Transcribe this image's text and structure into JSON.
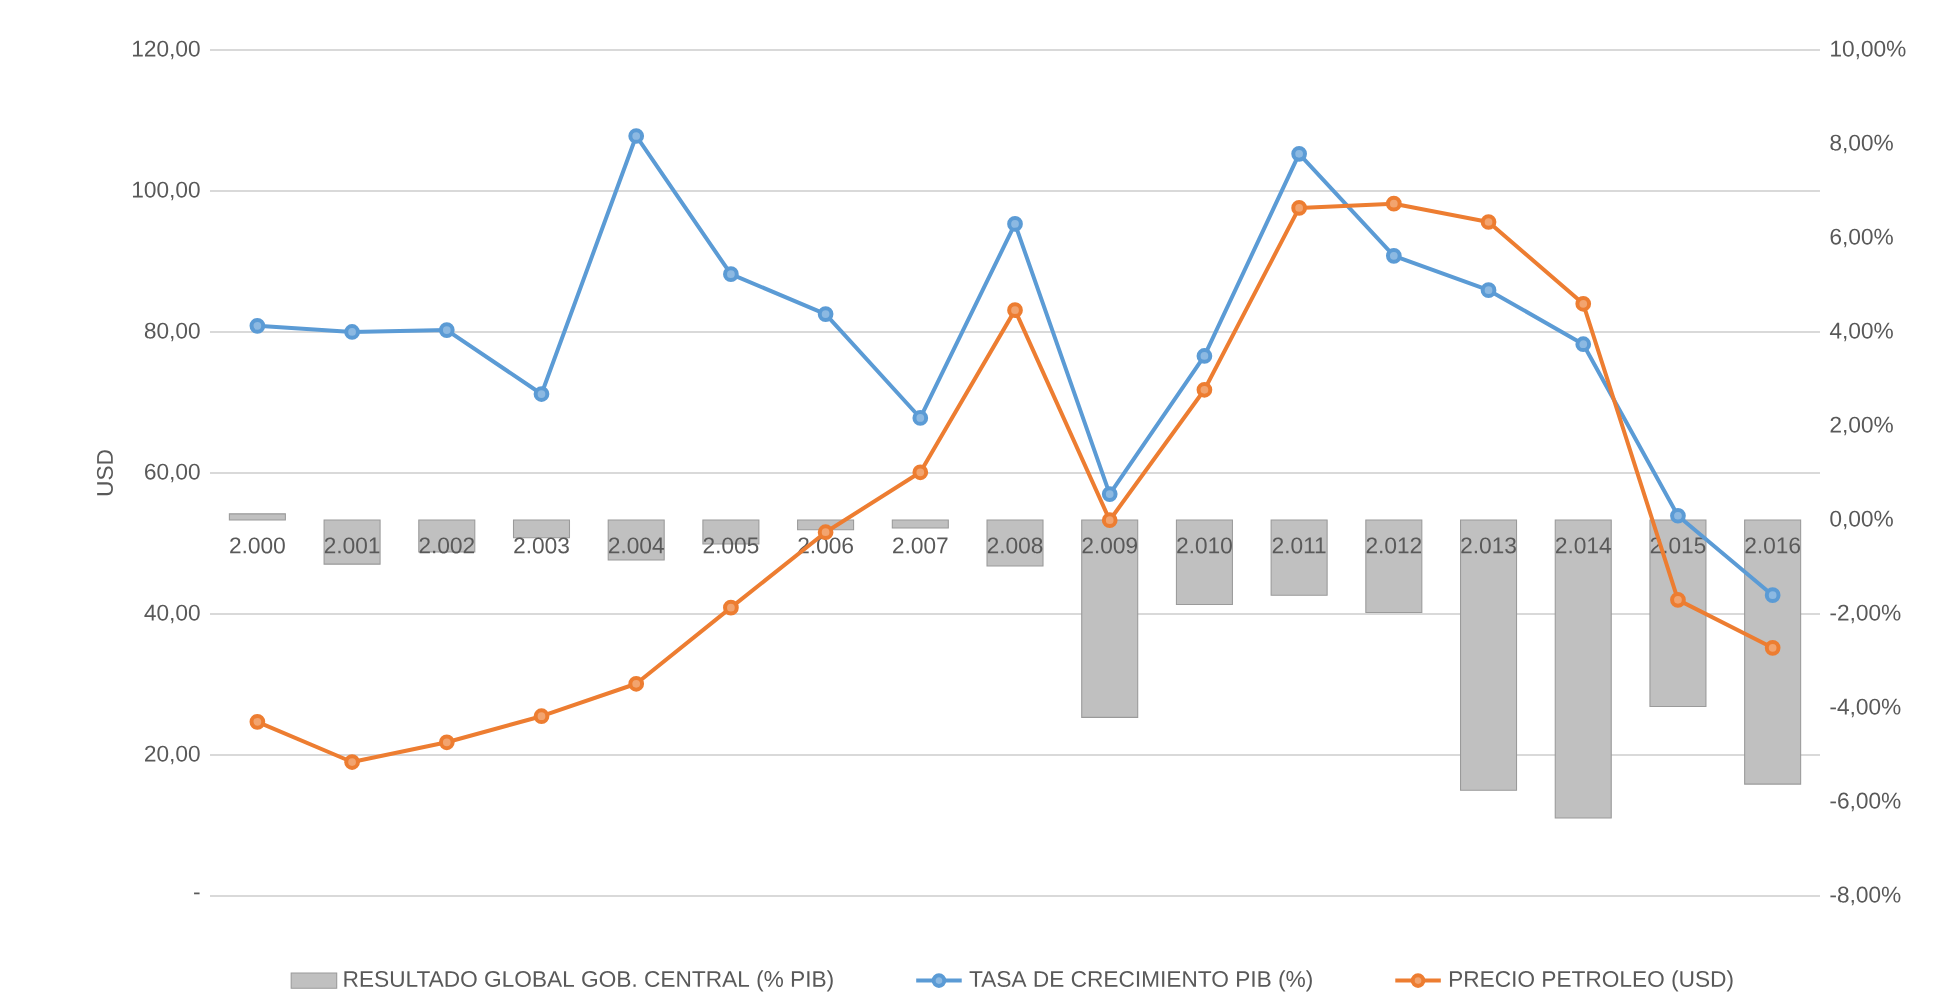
{
  "chart_data": {
    "type": "bar",
    "ylabel": "USD",
    "categories": [
      "2.000",
      "2.001",
      "2.002",
      "2.003",
      "2.004",
      "2.005",
      "2.006",
      "2.007",
      "2.008",
      "2.009",
      "2.010",
      "2.011",
      "2.012",
      "2.013",
      "2.014",
      "2.015",
      "2.016"
    ],
    "series": [
      {
        "name": "RESULTADO GLOBAL GOB. CENTRAL  (% PIB)",
        "axis": "y2",
        "color": "#c0c0c0",
        "values": [
          0.13,
          -0.94,
          -0.68,
          -0.38,
          -0.85,
          -0.51,
          -0.21,
          -0.17,
          -0.98,
          -4.2,
          -1.8,
          -1.6,
          -1.97,
          -5.75,
          -6.34,
          -3.97,
          -5.62
        ]
      },
      {
        "name": "TASA DE CRECIMIENTO PIB (%)",
        "type": "line",
        "axis": "y2",
        "color": "#5b9bd5",
        "values": [
          4.13,
          4.0,
          4.04,
          2.68,
          8.17,
          5.23,
          4.38,
          2.17,
          6.3,
          0.55,
          3.49,
          7.79,
          5.62,
          4.89,
          3.74,
          0.09,
          -1.6
        ]
      },
      {
        "name": "PRECIO PETROLEO (USD)",
        "type": "line",
        "axis": "y",
        "color": "#ed7d31",
        "values": [
          24.7,
          19.0,
          21.8,
          25.5,
          30.1,
          40.9,
          51.6,
          60.1,
          83.1,
          53.3,
          71.8,
          97.6,
          98.2,
          95.6,
          84.0,
          42.0,
          35.2
        ]
      }
    ],
    "ylim": [
      0,
      120
    ],
    "yticks": [
      {
        "value": 0,
        "label": "-"
      },
      {
        "value": 20,
        "label": "20,00"
      },
      {
        "value": 40,
        "label": "40,00"
      },
      {
        "value": 60,
        "label": "60,00"
      },
      {
        "value": 80,
        "label": "80,00"
      },
      {
        "value": 100,
        "label": "100,00"
      },
      {
        "value": 120,
        "label": "120,00"
      }
    ],
    "y2lim": [
      -8,
      10
    ],
    "y2ticks": [
      {
        "value": -8,
        "label": "-8,00%"
      },
      {
        "value": -6,
        "label": "-6,00%"
      },
      {
        "value": -4,
        "label": "-4,00%"
      },
      {
        "value": -2,
        "label": "-2,00%"
      },
      {
        "value": 0,
        "label": "0,00%"
      },
      {
        "value": 2,
        "label": "2,00%"
      },
      {
        "value": 4,
        "label": "4,00%"
      },
      {
        "value": 6,
        "label": "6,00%"
      },
      {
        "value": 8,
        "label": "8,00%"
      },
      {
        "value": 10,
        "label": "10,00%"
      }
    ],
    "grid": "y",
    "legend": "bottom",
    "marker": "circle",
    "line_style": "solid"
  }
}
